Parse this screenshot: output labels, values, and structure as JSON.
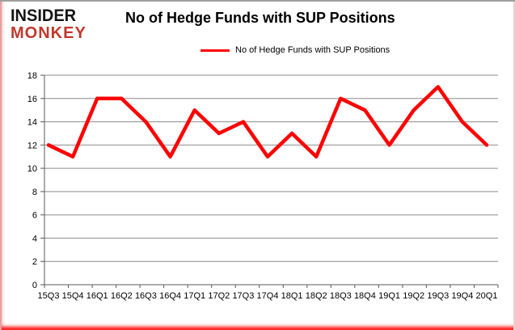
{
  "logo": {
    "line1": "INSIDER",
    "line2": "MONKEY",
    "line1_color": "#141414",
    "line2_color": "#c0392b"
  },
  "chart_data": {
    "type": "line",
    "title": "No of Hedge Funds with SUP Positions",
    "categories": [
      "15Q3",
      "15Q4",
      "16Q1",
      "16Q2",
      "16Q3",
      "16Q4",
      "17Q1",
      "17Q2",
      "17Q3",
      "17Q4",
      "18Q1",
      "18Q2",
      "18Q3",
      "18Q4",
      "19Q1",
      "19Q2",
      "19Q3",
      "19Q4",
      "20Q1"
    ],
    "series": [
      {
        "name": "No of Hedge Funds with SUP Positions",
        "values": [
          12,
          11,
          16,
          16,
          14,
          11,
          15,
          13,
          14,
          11,
          13,
          11,
          16,
          15,
          12,
          15,
          17,
          14,
          12
        ]
      }
    ],
    "xlabel": "",
    "ylabel": "",
    "ylim": [
      0,
      18
    ],
    "ytick_step": 2,
    "grid": "horizontal",
    "legend_position": "top",
    "line_color": "#ff0000",
    "grid_color": "#8c8c8c",
    "axis_color": "#595959"
  }
}
